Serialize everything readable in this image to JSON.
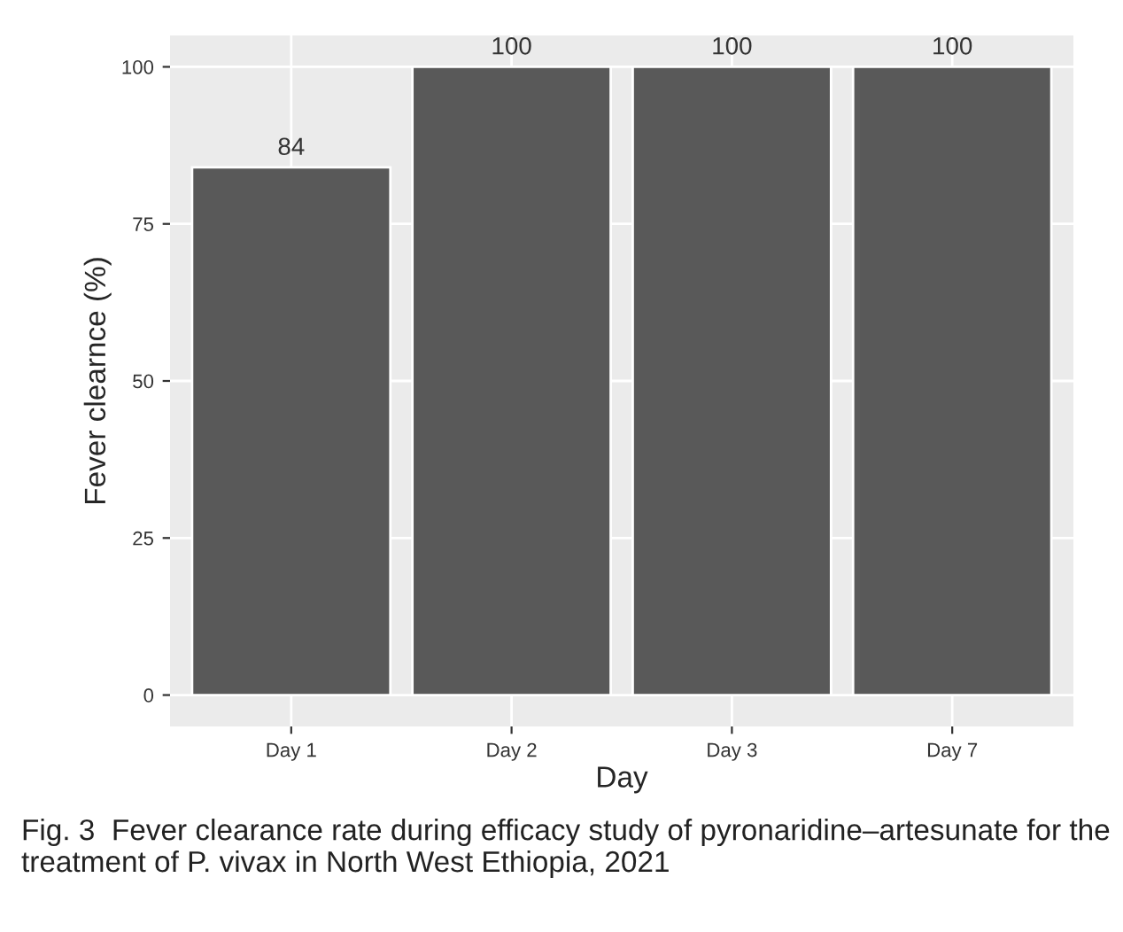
{
  "chart_data": {
    "type": "bar",
    "xlabel": "Day",
    "ylabel": "Fever clearnce (%)",
    "categories": [
      "Day 1",
      "Day 2",
      "Day 3",
      "Day 7"
    ],
    "values": [
      84,
      100,
      100,
      100
    ],
    "color": "#595959",
    "ylim": [
      -5,
      105
    ],
    "yticks": [
      0,
      25,
      50,
      75,
      100
    ],
    "grid": true,
    "data_labels": true,
    "annotations": [
      "Fig. 3  Fever clearance rate during efficacy study of pyronaridine–artesunate for the treatment of P. vivax in North West Ethiopia, 2021"
    ]
  }
}
